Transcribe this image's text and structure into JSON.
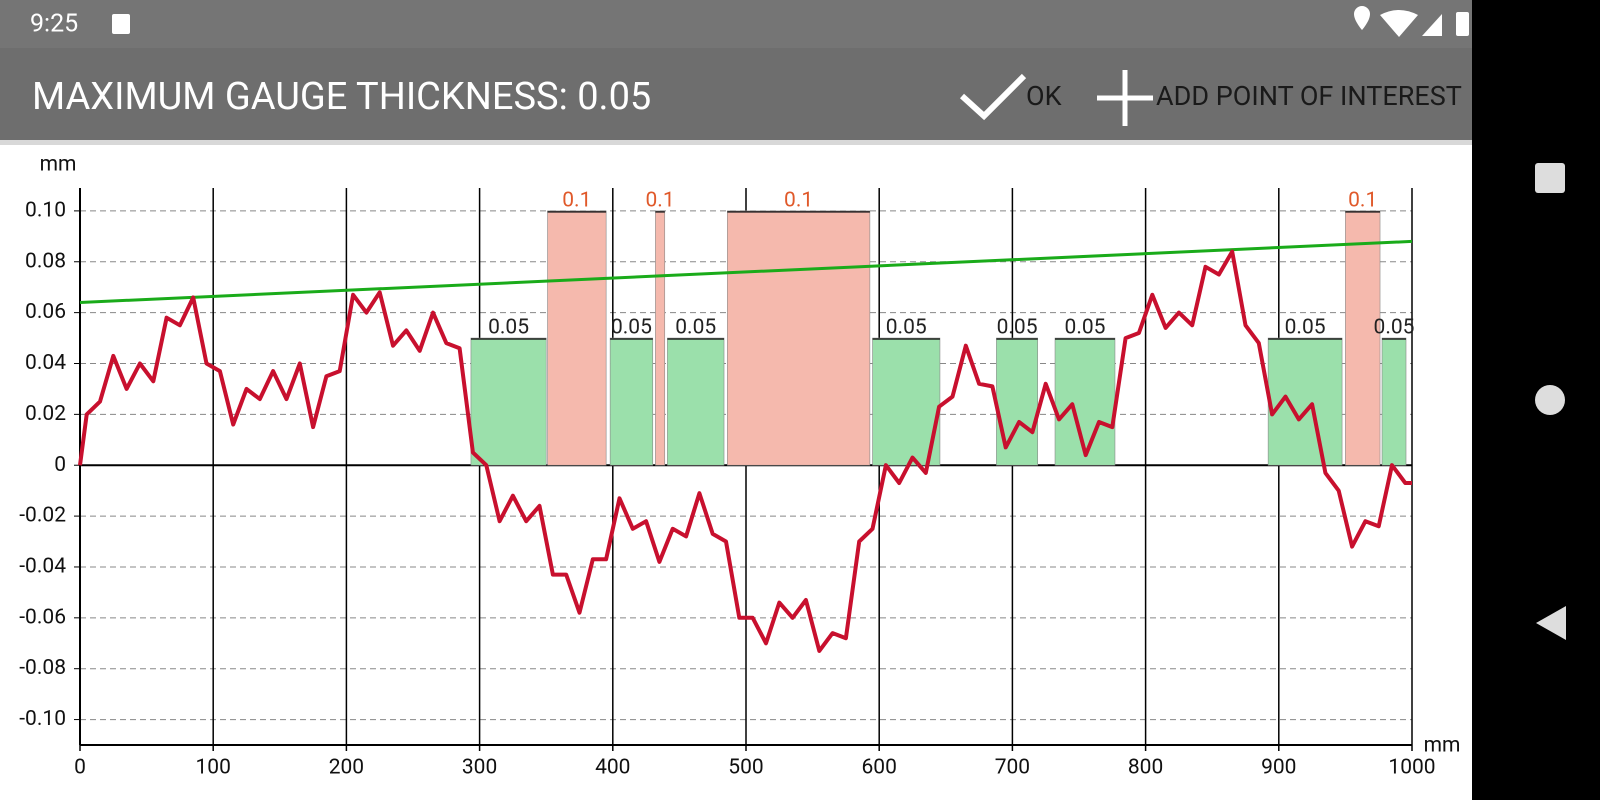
{
  "status_bar": {
    "time": "9:25"
  },
  "toolbar": {
    "title": "MAXIMUM GAUGE THICKNESS: 0.05",
    "actions": [
      "OK",
      "ADD POINT OF INTEREST"
    ]
  },
  "chart_data": {
    "type": "line",
    "y_label": "mm",
    "x_label": "mm",
    "xlim": [
      0,
      1000
    ],
    "ylim": [
      -0.11,
      0.109
    ],
    "xticks": [
      0,
      100,
      200,
      300,
      400,
      500,
      600,
      700,
      800,
      900,
      1000
    ],
    "yticks": [
      {
        "value": 0.1,
        "label": "0.10"
      },
      0.08,
      0.06,
      0.04,
      0.02,
      0,
      -0.02,
      -0.04,
      -0.06,
      -0.08,
      {
        "value": -0.1,
        "label": "-0.10"
      }
    ],
    "grid": true,
    "x": [
      0,
      5,
      15,
      25,
      35,
      45,
      55,
      65,
      75,
      85,
      95,
      105,
      115,
      125,
      135,
      145,
      155,
      165,
      175,
      185,
      195,
      205,
      215,
      225,
      235,
      245,
      255,
      265,
      275,
      285,
      295,
      305,
      315,
      325,
      335,
      345,
      355,
      365,
      375,
      385,
      395,
      405,
      415,
      425,
      435,
      445,
      455,
      465,
      475,
      485,
      495,
      505,
      515,
      525,
      535,
      545,
      555,
      565,
      575,
      585,
      595,
      605,
      615,
      625,
      635,
      645,
      655,
      665,
      675,
      685,
      695,
      705,
      715,
      725,
      735,
      745,
      755,
      765,
      775,
      785,
      795,
      805,
      815,
      825,
      835,
      845,
      855,
      865,
      875,
      885,
      895,
      905,
      915,
      925,
      935,
      945,
      955,
      965,
      975,
      985,
      995,
      1000
    ],
    "series": [
      {
        "color": "#c8102e",
        "values": [
          0,
          0.02,
          0.025,
          0.043,
          0.03,
          0.04,
          0.033,
          0.058,
          0.055,
          0.066,
          0.04,
          0.037,
          0.016,
          0.03,
          0.026,
          0.037,
          0.026,
          0.04,
          0.015,
          0.035,
          0.037,
          0.067,
          0.06,
          0.068,
          0.047,
          0.053,
          0.045,
          0.06,
          0.048,
          0.046,
          0.005,
          0,
          -0.022,
          -0.012,
          -0.022,
          -0.016,
          -0.043,
          -0.043,
          -0.058,
          -0.037,
          -0.037,
          -0.013,
          -0.025,
          -0.022,
          -0.038,
          -0.025,
          -0.028,
          -0.011,
          -0.027,
          -0.03,
          -0.06,
          -0.06,
          -0.07,
          -0.054,
          -0.06,
          -0.053,
          -0.073,
          -0.066,
          -0.068,
          -0.03,
          -0.025,
          0,
          -0.007,
          0.003,
          -0.003,
          0.023,
          0.027,
          0.047,
          0.032,
          0.031,
          0.007,
          0.017,
          0.013,
          0.032,
          0.018,
          0.024,
          0.004,
          0.017,
          0.015,
          0.05,
          0.052,
          0.067,
          0.054,
          0.06,
          0.055,
          0.078,
          0.075,
          0.084,
          0.055,
          0.048,
          0.02,
          0.027,
          0.018,
          0.024,
          -0.003,
          -0.01,
          -0.032,
          -0.022,
          -0.024,
          0,
          -0.007,
          -0.007
        ]
      }
    ],
    "reference_line": {
      "x": [
        0,
        1000
      ],
      "values": [
        0.064,
        0.088
      ],
      "color": "#1aab1a"
    },
    "gauges": [
      {
        "x": [
          293.5,
          350
        ],
        "value": 0.05,
        "color": "#9be0ab",
        "label_color": "#222222"
      },
      {
        "x": [
          351,
          395
        ],
        "value": 0.1,
        "color": "#f5b9ad",
        "label_color": "#e0592a"
      },
      {
        "x": [
          398,
          430
        ],
        "value": 0.05,
        "color": "#9be0ab",
        "label_color": "#222222"
      },
      {
        "x": [
          432,
          439
        ],
        "value": 0.1,
        "color": "#f5b9ad",
        "label_color": "#e0592a"
      },
      {
        "x": [
          441,
          483.5
        ],
        "value": 0.05,
        "color": "#9be0ab",
        "label_color": "#222222"
      },
      {
        "x": [
          486,
          593
        ],
        "value": 0.1,
        "color": "#f5b9ad",
        "label_color": "#e0592a"
      },
      {
        "x": [
          595,
          645.6
        ],
        "value": 0.05,
        "color": "#9be0ab",
        "label_color": "#222222"
      },
      {
        "x": [
          688,
          719
        ],
        "value": 0.05,
        "color": "#9be0ab",
        "label_color": "#222222"
      },
      {
        "x": [
          732,
          777
        ],
        "value": 0.05,
        "color": "#9be0ab",
        "label_color": "#222222"
      },
      {
        "x": [
          892,
          947.5
        ],
        "value": 0.05,
        "color": "#9be0ab",
        "label_color": "#222222"
      },
      {
        "x": [
          950,
          976
        ],
        "value": 0.1,
        "color": "#f5b9ad",
        "label_color": "#e0592a"
      },
      {
        "x": [
          977.5,
          995.5
        ],
        "value": 0.05,
        "color": "#9be0ab",
        "label_color": "#222222"
      }
    ]
  }
}
